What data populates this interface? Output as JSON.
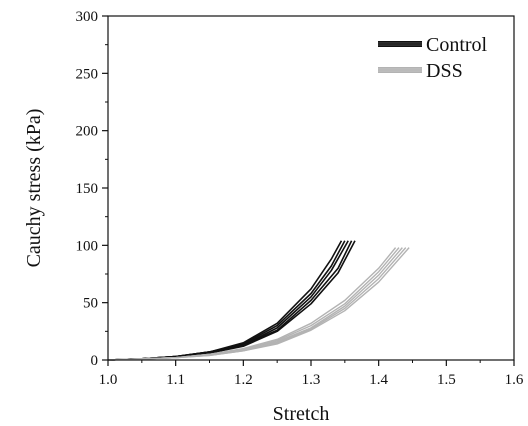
{
  "chart_data": {
    "type": "line",
    "title": "",
    "xlabel": "Stretch",
    "ylabel": "Cauchy stress (kPa)",
    "xlim": [
      1.0,
      1.6
    ],
    "ylim": [
      0,
      300
    ],
    "x_ticks": [
      "1.0",
      "1.1",
      "1.2",
      "1.3",
      "1.4",
      "1.5",
      "1.6"
    ],
    "y_ticks": [
      "0",
      "50",
      "100",
      "150",
      "200",
      "250",
      "300"
    ],
    "grid": false,
    "legend_position": "top-right",
    "series": [
      {
        "name": "Control",
        "color": "#111111",
        "curves": [
          {
            "x": [
              1.0,
              1.05,
              1.1,
              1.15,
              1.2,
              1.25,
              1.3,
              1.33,
              1.35
            ],
            "y": [
              0,
              1,
              3,
              7,
              14,
              30,
              58,
              82,
              104
            ]
          },
          {
            "x": [
              1.0,
              1.05,
              1.1,
              1.15,
              1.2,
              1.25,
              1.3,
              1.33,
              1.355
            ],
            "y": [
              0,
              1,
              3,
              7,
              13,
              28,
              55,
              78,
              104
            ]
          },
          {
            "x": [
              1.0,
              1.05,
              1.1,
              1.15,
              1.2,
              1.25,
              1.3,
              1.34,
              1.36
            ],
            "y": [
              0,
              1,
              3,
              6,
              13,
              26,
              52,
              80,
              104
            ]
          },
          {
            "x": [
              1.0,
              1.05,
              1.1,
              1.15,
              1.2,
              1.25,
              1.3,
              1.34,
              1.365
            ],
            "y": [
              0,
              1,
              3,
              6,
              12,
              25,
              49,
              76,
              104
            ]
          },
          {
            "x": [
              1.0,
              1.05,
              1.1,
              1.15,
              1.2,
              1.25,
              1.3,
              1.33,
              1.345
            ],
            "y": [
              0,
              1,
              3,
              7,
              15,
              32,
              62,
              88,
              104
            ]
          }
        ]
      },
      {
        "name": "DSS",
        "color": "#b3b3b3",
        "curves": [
          {
            "x": [
              1.0,
              1.05,
              1.1,
              1.15,
              1.2,
              1.25,
              1.3,
              1.35,
              1.4,
              1.425
            ],
            "y": [
              0,
              1,
              2,
              5,
              10,
              18,
              32,
              52,
              80,
              98
            ]
          },
          {
            "x": [
              1.0,
              1.05,
              1.1,
              1.15,
              1.2,
              1.25,
              1.3,
              1.35,
              1.4,
              1.43
            ],
            "y": [
              0,
              1,
              2,
              5,
              9,
              17,
              30,
              49,
              77,
              98
            ]
          },
          {
            "x": [
              1.0,
              1.05,
              1.1,
              1.15,
              1.2,
              1.25,
              1.3,
              1.35,
              1.4,
              1.435
            ],
            "y": [
              0,
              1,
              2,
              5,
              9,
              16,
              28,
              47,
              74,
              98
            ]
          },
          {
            "x": [
              1.0,
              1.05,
              1.1,
              1.15,
              1.2,
              1.25,
              1.3,
              1.35,
              1.4,
              1.44
            ],
            "y": [
              0,
              1,
              2,
              4,
              8,
              15,
              27,
              45,
              71,
              98
            ]
          },
          {
            "x": [
              1.0,
              1.05,
              1.1,
              1.15,
              1.2,
              1.25,
              1.3,
              1.35,
              1.4,
              1.445
            ],
            "y": [
              0,
              1,
              2,
              4,
              8,
              14,
              26,
              43,
              68,
              98
            ]
          }
        ]
      }
    ]
  }
}
